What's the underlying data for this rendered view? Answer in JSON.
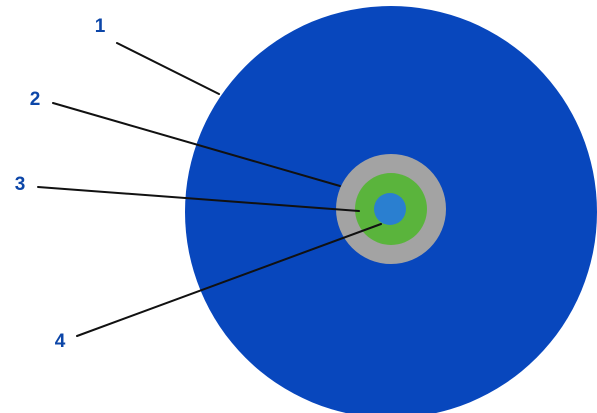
{
  "colors": {
    "layer_1": "#0847bd",
    "layer_2": "#a3a3a3",
    "layer_3": "#5ab43c",
    "layer_4": "#2a7fd0",
    "label_text": "#0c46a8",
    "leader_line": "#111111"
  },
  "callouts": [
    {
      "id": "1",
      "label": "1"
    },
    {
      "id": "2",
      "label": "2"
    },
    {
      "id": "3",
      "label": "3"
    },
    {
      "id": "4",
      "label": "4"
    }
  ]
}
